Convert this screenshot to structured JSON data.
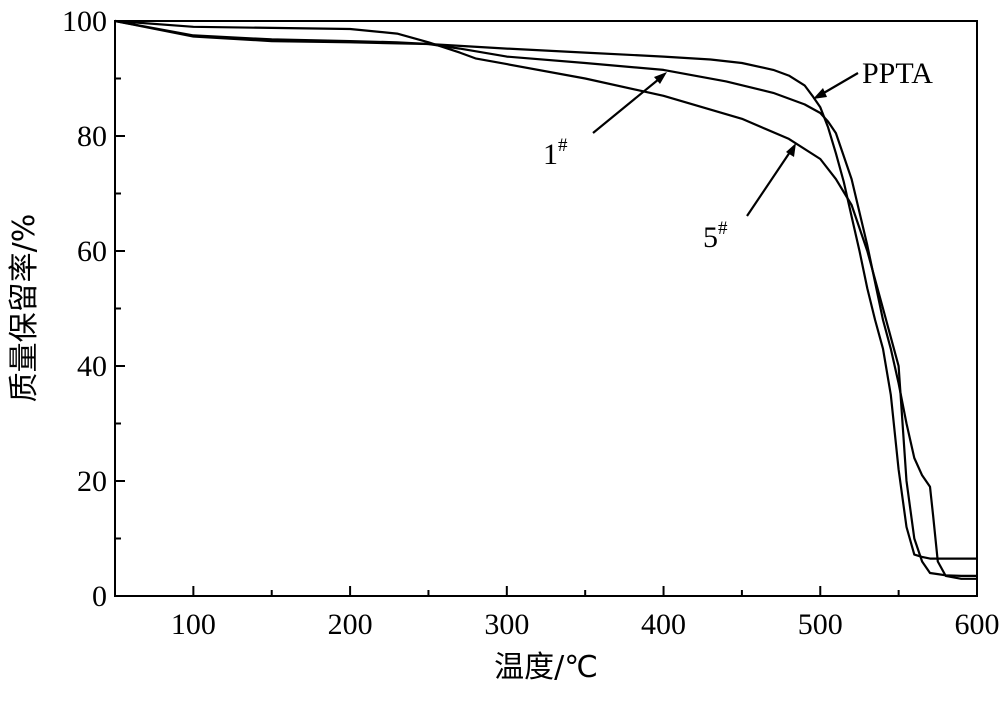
{
  "chart_data": {
    "type": "line",
    "xlabel": "温度/℃",
    "ylabel": "质量保留率/%",
    "xlim": [
      50,
      600
    ],
    "ylim": [
      0,
      100
    ],
    "xticks": [
      100,
      200,
      300,
      400,
      500,
      600
    ],
    "yticks": [
      0,
      20,
      40,
      60,
      80,
      100
    ],
    "grid": false,
    "legend": "none",
    "series": [
      {
        "name": "PPTA",
        "x": [
          50,
          100,
          150,
          200,
          250,
          300,
          350,
          400,
          430,
          450,
          470,
          480,
          490,
          495,
          500,
          505,
          510,
          515,
          520,
          525,
          530,
          535,
          540,
          545,
          550,
          555,
          560,
          565,
          570,
          575,
          580,
          590,
          600
        ],
        "y": [
          100,
          97.3,
          96.5,
          96.3,
          96.0,
          95.2,
          94.5,
          93.8,
          93.3,
          92.7,
          91.5,
          90.5,
          88.8,
          87.0,
          85.0,
          81.5,
          77.0,
          72.0,
          66.0,
          60.0,
          53.5,
          48.0,
          43.0,
          35.0,
          22.0,
          12.0,
          7.2,
          6.8,
          6.5,
          6.5,
          6.5,
          6.5,
          6.5
        ]
      },
      {
        "name": "1#",
        "x": [
          50,
          100,
          150,
          200,
          230,
          250,
          270,
          300,
          350,
          400,
          440,
          470,
          490,
          500,
          505,
          510,
          520,
          530,
          540,
          545,
          550,
          555,
          560,
          565,
          570,
          572,
          575,
          580,
          590,
          600
        ],
        "y": [
          100,
          97.5,
          96.8,
          96.5,
          96.3,
          96.0,
          95.2,
          93.8,
          92.7,
          91.5,
          89.5,
          87.5,
          85.5,
          84.0,
          82.5,
          80.5,
          72.5,
          61.0,
          48.0,
          43.0,
          37.0,
          30.0,
          24.0,
          21.0,
          19.0,
          14.0,
          6.0,
          3.5,
          3.0,
          3.0
        ]
      },
      {
        "name": "5#",
        "x": [
          50,
          100,
          150,
          200,
          230,
          250,
          270,
          280,
          300,
          350,
          400,
          450,
          480,
          500,
          510,
          520,
          530,
          540,
          550,
          555,
          560,
          565,
          570,
          575,
          580,
          590,
          600
        ],
        "y": [
          100,
          99.0,
          98.8,
          98.6,
          97.8,
          96.3,
          94.5,
          93.5,
          92.5,
          90.0,
          87.0,
          83.0,
          79.5,
          76.0,
          72.5,
          68.0,
          60.0,
          50.0,
          40.0,
          20.0,
          10.0,
          6.0,
          4.0,
          3.8,
          3.6,
          3.5,
          3.5
        ]
      }
    ],
    "annotations": [
      {
        "label": "PPTA",
        "sup": ""
      },
      {
        "label": "1",
        "sup": "#"
      },
      {
        "label": "5",
        "sup": "#"
      }
    ]
  }
}
